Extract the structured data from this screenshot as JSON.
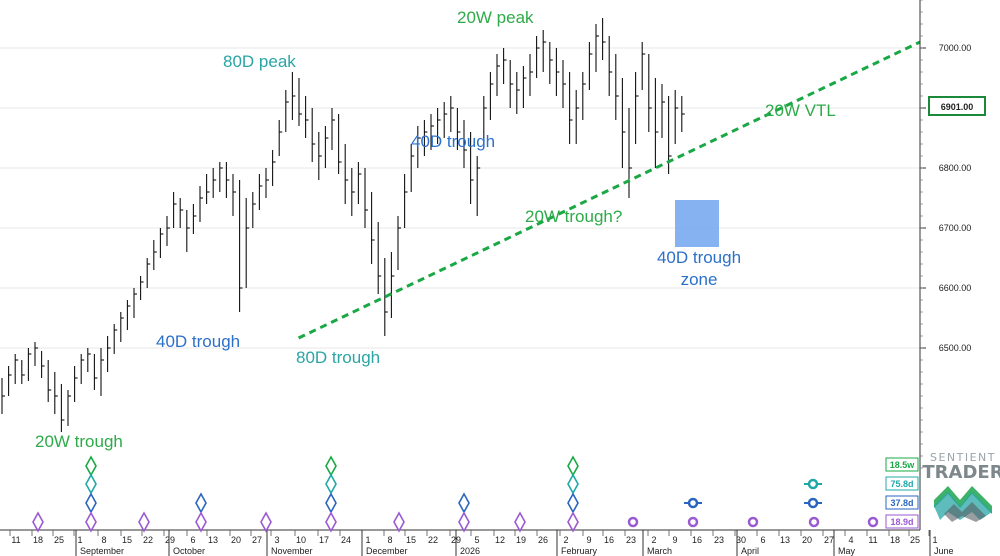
{
  "chart_data": {
    "type": "ohlc",
    "y_axis": {
      "min": 6300,
      "max": 7100,
      "ticks": [
        "7000.00",
        "6900.00",
        "6800.00",
        "6700.00",
        "6600.00",
        "6500.00"
      ],
      "current_price_label": "6901.00"
    },
    "x_axis": {
      "day_labels": [
        "11",
        "18",
        "25",
        "1",
        "8",
        "15",
        "22",
        "29",
        "6",
        "13",
        "20",
        "27",
        "3",
        "10",
        "17",
        "24",
        "1",
        "8",
        "15",
        "22",
        "29",
        "5",
        "12",
        "19",
        "26",
        "2",
        "9",
        "16",
        "23",
        "2",
        "9",
        "16",
        "23",
        "30",
        "6",
        "13",
        "20",
        "27",
        "4",
        "11",
        "18",
        "25",
        "1"
      ],
      "month_labels": [
        "September",
        "October",
        "November",
        "December",
        "2026",
        "February",
        "March",
        "April",
        "May",
        "June"
      ]
    },
    "annotations": {
      "trough_20w_left": "20W trough",
      "trough_40d_oct": "40D trough",
      "peak_80d": "80D peak",
      "trough_80d": "80D trough",
      "trough_40d_dec": "40D trough",
      "peak_20w": "20W peak",
      "trough_20w_q": "20W trough?",
      "zone_40d_line1": "40D trough",
      "zone_40d_line2": "zone",
      "vtl_label": "20W VTL"
    },
    "cycle_legend": [
      "18.5w",
      "75.8d",
      "37.8d",
      "18.9d"
    ],
    "logo": {
      "line1": "SENTIENT",
      "line2": "TRADER"
    },
    "bars": [
      [
        6450,
        6390,
        6420
      ],
      [
        6470,
        6420,
        6455
      ],
      [
        6490,
        6440,
        6480
      ],
      [
        6480,
        6440,
        6455
      ],
      [
        6500,
        6445,
        6490
      ],
      [
        6510,
        6470,
        6500
      ],
      [
        6495,
        6450,
        6470
      ],
      [
        6480,
        6410,
        6430
      ],
      [
        6460,
        6390,
        6420
      ],
      [
        6440,
        6360,
        6380
      ],
      [
        6430,
        6370,
        6420
      ],
      [
        6470,
        6410,
        6450
      ],
      [
        6490,
        6440,
        6480
      ],
      [
        6500,
        6460,
        6490
      ],
      [
        6490,
        6430,
        6450
      ],
      [
        6500,
        6420,
        6480
      ],
      [
        6520,
        6460,
        6500
      ],
      [
        6540,
        6490,
        6530
      ],
      [
        6560,
        6510,
        6550
      ],
      [
        6580,
        6530,
        6570
      ],
      [
        6600,
        6550,
        6590
      ],
      [
        6620,
        6580,
        6610
      ],
      [
        6650,
        6600,
        6640
      ],
      [
        6680,
        6630,
        6660
      ],
      [
        6700,
        6650,
        6690
      ],
      [
        6720,
        6670,
        6700
      ],
      [
        6760,
        6700,
        6740
      ],
      [
        6750,
        6700,
        6730
      ],
      [
        6730,
        6660,
        6700
      ],
      [
        6740,
        6690,
        6720
      ],
      [
        6770,
        6710,
        6750
      ],
      [
        6790,
        6740,
        6760
      ],
      [
        6800,
        6750,
        6780
      ],
      [
        6810,
        6760,
        6800
      ],
      [
        6810,
        6750,
        6780
      ],
      [
        6790,
        6720,
        6760
      ],
      [
        6780,
        6560,
        6600
      ],
      [
        6750,
        6600,
        6700
      ],
      [
        6760,
        6700,
        6740
      ],
      [
        6790,
        6730,
        6770
      ],
      [
        6800,
        6750,
        6780
      ],
      [
        6830,
        6770,
        6810
      ],
      [
        6880,
        6820,
        6860
      ],
      [
        6930,
        6860,
        6910
      ],
      [
        6960,
        6880,
        6920
      ],
      [
        6950,
        6870,
        6890
      ],
      [
        6920,
        6850,
        6880
      ],
      [
        6900,
        6810,
        6840
      ],
      [
        6860,
        6780,
        6820
      ],
      [
        6870,
        6800,
        6850
      ],
      [
        6900,
        6830,
        6880
      ],
      [
        6890,
        6790,
        6810
      ],
      [
        6840,
        6740,
        6780
      ],
      [
        6800,
        6720,
        6760
      ],
      [
        6810,
        6740,
        6790
      ],
      [
        6800,
        6700,
        6730
      ],
      [
        6760,
        6640,
        6680
      ],
      [
        6710,
        6590,
        6620
      ],
      [
        6650,
        6520,
        6560
      ],
      [
        6660,
        6550,
        6620
      ],
      [
        6720,
        6630,
        6700
      ],
      [
        6790,
        6700,
        6760
      ],
      [
        6840,
        6760,
        6820
      ],
      [
        6870,
        6800,
        6850
      ],
      [
        6880,
        6820,
        6860
      ],
      [
        6890,
        6830,
        6870
      ],
      [
        6900,
        6840,
        6880
      ],
      [
        6910,
        6850,
        6890
      ],
      [
        6920,
        6860,
        6900
      ],
      [
        6900,
        6830,
        6860
      ],
      [
        6880,
        6800,
        6830
      ],
      [
        6860,
        6740,
        6780
      ],
      [
        6820,
        6720,
        6800
      ],
      [
        6920,
        6840,
        6900
      ],
      [
        6960,
        6880,
        6940
      ],
      [
        6990,
        6920,
        6970
      ],
      [
        7000,
        6940,
        6980
      ],
      [
        6980,
        6900,
        6940
      ],
      [
        6960,
        6890,
        6930
      ],
      [
        6970,
        6900,
        6950
      ],
      [
        6990,
        6920,
        6960
      ],
      [
        7020,
        6950,
        7000
      ],
      [
        7030,
        6960,
        7010
      ],
      [
        7010,
        6940,
        6980
      ],
      [
        7000,
        6920,
        6960
      ],
      [
        6980,
        6900,
        6940
      ],
      [
        6960,
        6840,
        6880
      ],
      [
        6930,
        6840,
        6900
      ],
      [
        6960,
        6880,
        6940
      ],
      [
        7010,
        6930,
        6990
      ],
      [
        7040,
        6960,
        7020
      ],
      [
        7050,
        6980,
        7010
      ],
      [
        7020,
        6920,
        6960
      ],
      [
        6990,
        6880,
        6920
      ],
      [
        6950,
        6800,
        6860
      ],
      [
        6900,
        6750,
        6800
      ],
      [
        6960,
        6840,
        6920
      ],
      [
        7010,
        6930,
        6990
      ],
      [
        6990,
        6860,
        6900
      ],
      [
        6950,
        6800,
        6860
      ],
      [
        6940,
        6850,
        6910
      ],
      [
        6920,
        6790,
        6820
      ],
      [
        6930,
        6840,
        6900
      ],
      [
        6920,
        6860,
        6890
      ]
    ],
    "vtl": {
      "from": [
        26,
        6525
      ],
      "to": [
        96,
        7130
      ]
    },
    "zone_box": {
      "day_from": 78,
      "day_to": 83,
      "price_from": 6675,
      "price_to": 6745
    }
  }
}
